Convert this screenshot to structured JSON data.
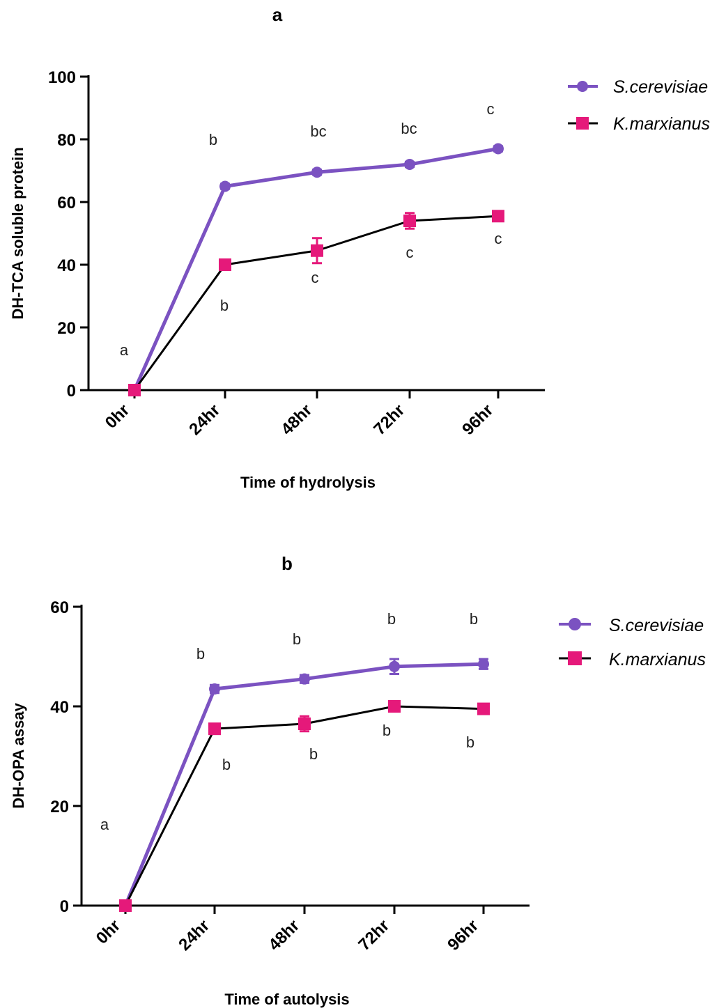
{
  "charts": {
    "a": {
      "panel_label": "a",
      "xlabel": "Time of hydrolysis",
      "ylabel": "DH-TCA soluble protein",
      "legend": [
        "S.cerevisiae",
        "K.marxianus"
      ],
      "ticks": [
        "0",
        "20",
        "40",
        "60",
        "80",
        "100"
      ],
      "categories": [
        "0hr",
        "24hr",
        "48hr",
        "72hr",
        "96hr"
      ],
      "sig_purple": [
        "a",
        "b",
        "bc",
        "bc",
        "c"
      ],
      "sig_pink": [
        "b",
        "c",
        "c",
        "c"
      ]
    },
    "b": {
      "panel_label": "b",
      "xlabel": "Time of autolysis",
      "ylabel": "DH-OPA assay",
      "legend": [
        "S.cerevisiae",
        "K.marxianus"
      ],
      "ticks": [
        "0",
        "20",
        "40",
        "60"
      ],
      "categories": [
        "0hr",
        "24hr",
        "48hr",
        "72hr",
        "96hr"
      ],
      "sig_purple": [
        "a",
        "b",
        "b",
        "b",
        "b"
      ],
      "sig_pink": [
        "b",
        "b",
        "b",
        "b"
      ]
    }
  },
  "chart_data": [
    {
      "type": "line",
      "title": "a",
      "xlabel": "Time of hydrolysis",
      "ylabel": "DH-TCA soluble protein",
      "categories": [
        "0hr",
        "24hr",
        "48hr",
        "72hr",
        "96hr"
      ],
      "ylim": [
        0,
        100
      ],
      "yticks": [
        0,
        20,
        40,
        60,
        80,
        100
      ],
      "legend_position": "top-right",
      "series": [
        {
          "name": "S.cerevisiae",
          "values": [
            0,
            65,
            69.5,
            72,
            77
          ],
          "error": [
            0,
            0.8,
            0.8,
            0.8,
            0.8
          ],
          "color": "#7b52c1",
          "marker": "circle"
        },
        {
          "name": "K.marxianus",
          "values": [
            0,
            40,
            44.5,
            54,
            55.5
          ],
          "error": [
            0,
            1,
            4,
            2.5,
            1
          ],
          "color": "#e5197a",
          "marker": "square"
        }
      ],
      "annotations": {
        "S.cerevisiae": [
          "a",
          "b",
          "bc",
          "bc",
          "c"
        ],
        "K.marxianus": [
          "",
          "b",
          "c",
          "c",
          "c"
        ]
      }
    },
    {
      "type": "line",
      "title": "b",
      "xlabel": "Time of autolysis",
      "ylabel": "DH-OPA assay",
      "categories": [
        "0hr",
        "24hr",
        "48hr",
        "72hr",
        "96hr"
      ],
      "ylim": [
        0,
        60
      ],
      "yticks": [
        0,
        20,
        40,
        60
      ],
      "legend_position": "top-right",
      "series": [
        {
          "name": "S.cerevisiae",
          "values": [
            0,
            43.5,
            45.5,
            48,
            48.5
          ],
          "error": [
            0,
            0.8,
            0.8,
            1.5,
            1
          ],
          "color": "#7b52c1",
          "marker": "circle"
        },
        {
          "name": "K.marxianus",
          "values": [
            0,
            35.5,
            36.5,
            40,
            39.5
          ],
          "error": [
            0,
            1,
            1.5,
            0.8,
            0.8
          ],
          "color": "#e5197a",
          "marker": "square"
        }
      ],
      "annotations": {
        "S.cerevisiae": [
          "a",
          "b",
          "b",
          "b",
          "b"
        ],
        "K.marxianus": [
          "",
          "b",
          "b",
          "b",
          "b"
        ]
      }
    }
  ]
}
